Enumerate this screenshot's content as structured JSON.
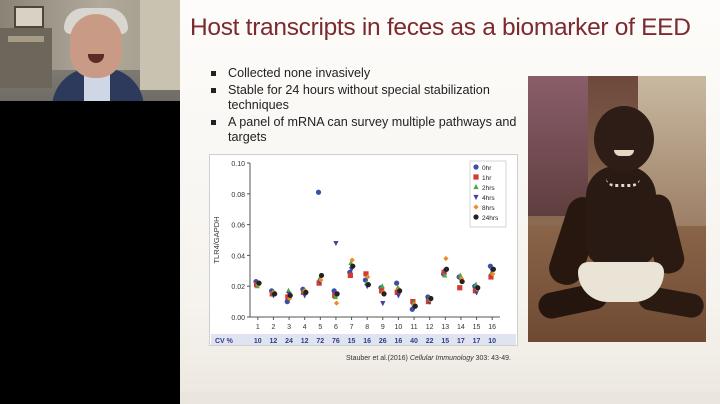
{
  "slide": {
    "title": "Host transcripts in feces as a biomarker of EED",
    "bullets": [
      "Collected none invasively",
      "Stable for 24 hours without special stabilization techniques",
      "A panel of mRNA can survey multiple pathways and targets"
    ],
    "citation_prefix": "Stauber et al.(2016) ",
    "citation_journal": "Cellular Immunology",
    "citation_suffix": " 303: 43-49."
  },
  "colors": {
    "title": "#7b2a2e",
    "0hr": "#3b4fa8",
    "1hr": "#d63a2f",
    "2hrs": "#4aa84a",
    "4hrs": "#4a3f9a",
    "8hrs": "#f08a2a",
    "24hrs": "#222222"
  },
  "chart_data": {
    "type": "scatter",
    "ylabel": "TLR4/GAPDH",
    "ylim": [
      0,
      0.1
    ],
    "yticks": [
      "0.10",
      "0.08",
      "0.06",
      "0.04",
      "0.02",
      "0.00"
    ],
    "categories": [
      "1",
      "2",
      "3",
      "4",
      "5",
      "6",
      "7",
      "8",
      "9",
      "10",
      "11",
      "12",
      "13",
      "14",
      "15",
      "16"
    ],
    "cv_label": "CV %",
    "cv_values": [
      "10",
      "12",
      "24",
      "12",
      "72",
      "76",
      "15",
      "16",
      "26",
      "16",
      "40",
      "22",
      "15",
      "17",
      "17",
      "10"
    ],
    "series": [
      {
        "name": "0hr",
        "marker": "circle",
        "values": [
          0.023,
          0.017,
          0.01,
          0.018,
          0.081,
          0.017,
          0.029,
          0.024,
          0.019,
          0.022,
          0.005,
          0.013,
          0.028,
          0.026,
          0.02,
          0.033
        ]
      },
      {
        "name": "1hr",
        "marker": "square",
        "values": [
          0.021,
          0.015,
          0.013,
          0.016,
          0.022,
          0.014,
          0.027,
          0.028,
          0.017,
          0.016,
          0.01,
          0.01,
          0.029,
          0.019,
          0.017,
          0.026
        ]
      },
      {
        "name": "2hrs",
        "marker": "triangle",
        "values": [
          0.02,
          0.016,
          0.017,
          0.017,
          0.025,
          0.013,
          0.035,
          0.022,
          0.02,
          0.019,
          0.009,
          0.012,
          0.027,
          0.027,
          0.021,
          0.029
        ]
      },
      {
        "name": "4hrs",
        "marker": "tri-down",
        "values": [
          0.022,
          0.014,
          0.015,
          0.014,
          0.023,
          0.048,
          0.031,
          0.02,
          0.009,
          0.014,
          0.006,
          0.01,
          0.03,
          0.024,
          0.016,
          0.03
        ]
      },
      {
        "name": "8hrs",
        "marker": "diamond",
        "values": [
          0.021,
          0.016,
          0.012,
          0.017,
          0.024,
          0.009,
          0.037,
          0.026,
          0.016,
          0.018,
          0.008,
          0.011,
          0.038,
          0.025,
          0.018,
          0.028
        ]
      },
      {
        "name": "24hrs",
        "marker": "circle",
        "values": [
          0.022,
          0.015,
          0.014,
          0.016,
          0.027,
          0.015,
          0.033,
          0.021,
          0.015,
          0.017,
          0.007,
          0.012,
          0.031,
          0.023,
          0.019,
          0.031
        ]
      }
    ]
  }
}
